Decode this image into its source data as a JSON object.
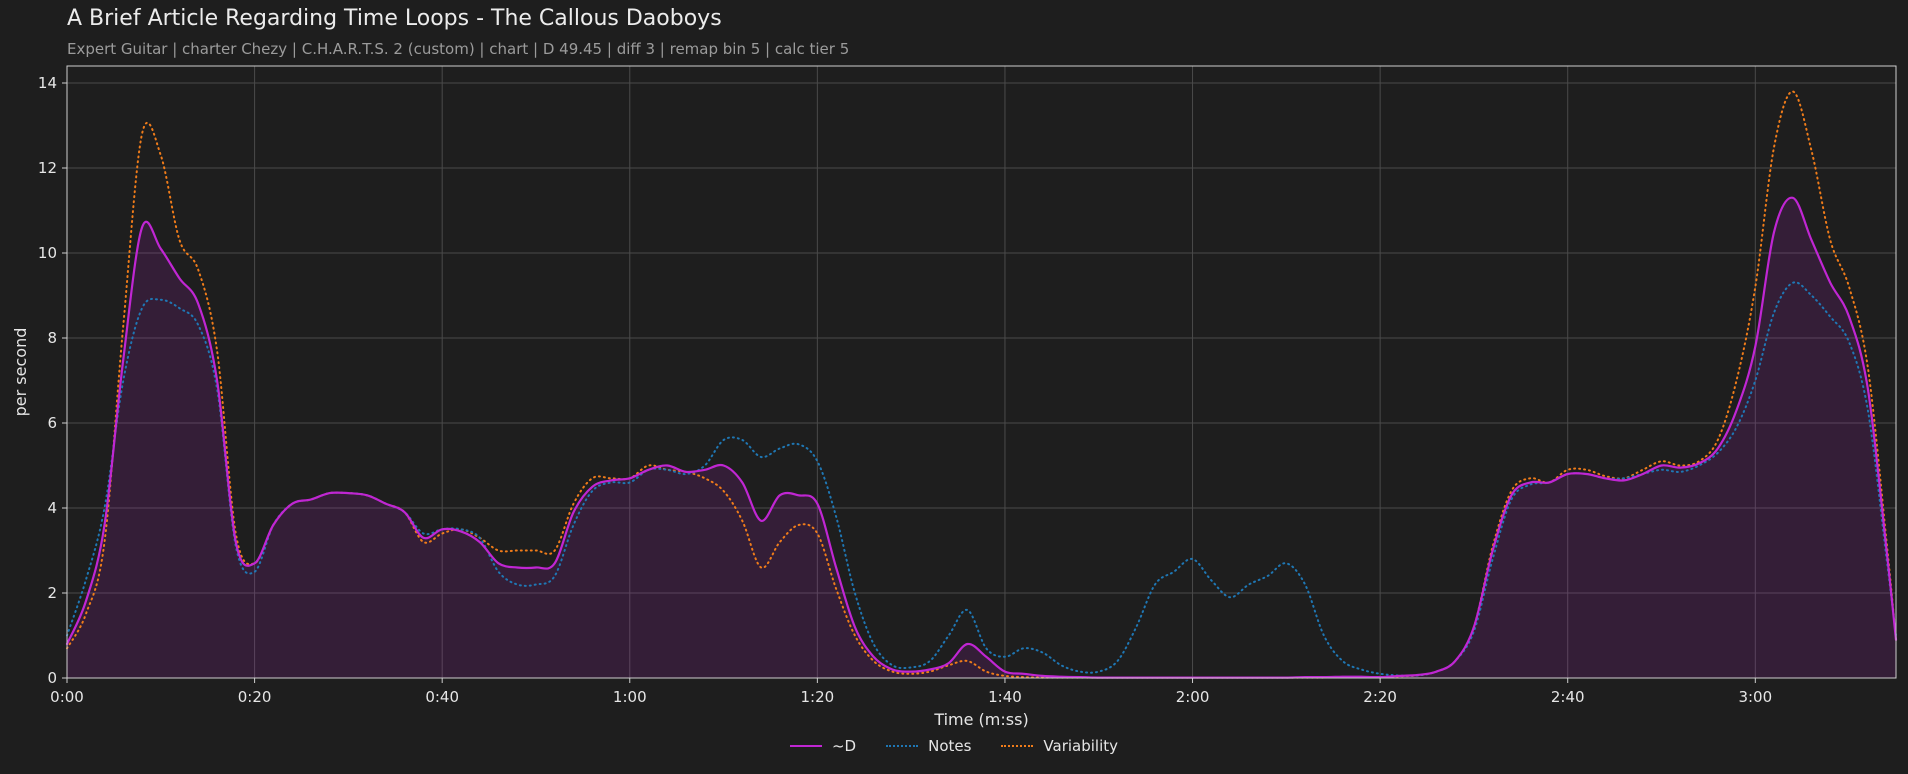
{
  "header": {
    "title": "A Brief Article Regarding Time Loops - The Callous Daoboys",
    "subtitle": "Expert Guitar  |  charter Chezy  |  C.H.A.R.T.S. 2 (custom)  |  chart  |  D 49.45  |  diff 3  |  remap bin 5  |  calc tier 5"
  },
  "chart_data": {
    "type": "area",
    "title": "A Brief Article Regarding Time Loops - The Callous Daoboys",
    "xlabel": "Time (m:ss)",
    "ylabel": "per second",
    "xlim": [
      0,
      195
    ],
    "ylim": [
      0,
      14.4
    ],
    "grid": true,
    "legend_position": "bottom-center",
    "xticks": [
      0,
      20,
      40,
      60,
      80,
      100,
      120,
      140,
      160,
      180
    ],
    "xtick_labels": [
      "0:00",
      "0:20",
      "0:40",
      "1:00",
      "1:20",
      "1:40",
      "2:00",
      "2:20",
      "2:40",
      "3:00"
    ],
    "yticks": [
      0,
      2,
      4,
      6,
      8,
      10,
      12,
      14
    ],
    "ytick_labels": [
      "0",
      "2",
      "4",
      "6",
      "8",
      "10",
      "12",
      "14"
    ],
    "x": [
      0,
      2,
      4,
      6,
      8,
      10,
      12,
      14,
      16,
      18,
      20,
      22,
      24,
      26,
      28,
      30,
      32,
      34,
      36,
      38,
      40,
      42,
      44,
      46,
      48,
      50,
      52,
      54,
      56,
      58,
      60,
      62,
      64,
      66,
      68,
      70,
      72,
      74,
      76,
      78,
      80,
      82,
      84,
      86,
      88,
      90,
      92,
      94,
      96,
      98,
      100,
      102,
      104,
      106,
      108,
      110,
      112,
      114,
      116,
      118,
      120,
      122,
      124,
      126,
      128,
      130,
      132,
      134,
      136,
      138,
      140,
      142,
      144,
      146,
      148,
      150,
      152,
      154,
      156,
      158,
      160,
      162,
      164,
      166,
      168,
      170,
      172,
      174,
      176,
      178,
      180,
      182,
      184,
      186,
      188,
      190,
      192,
      194,
      195
    ],
    "series": [
      {
        "name": "~D",
        "color": "#c026d3",
        "style": "solid",
        "values": [
          0.8,
          1.8,
          3.6,
          7.5,
          10.6,
          10.1,
          9.4,
          8.8,
          7.0,
          3.2,
          2.7,
          3.6,
          4.1,
          4.2,
          4.35,
          4.35,
          4.3,
          4.1,
          3.9,
          3.3,
          3.5,
          3.45,
          3.2,
          2.7,
          2.6,
          2.6,
          2.7,
          3.9,
          4.5,
          4.65,
          4.7,
          4.9,
          5.0,
          4.85,
          4.9,
          5.0,
          4.6,
          3.7,
          4.3,
          4.3,
          4.1,
          2.6,
          1.2,
          0.5,
          0.2,
          0.15,
          0.2,
          0.35,
          0.8,
          0.5,
          0.15,
          0.1,
          0.05,
          0.03,
          0.02,
          0.01,
          0.01,
          0.01,
          0.01,
          0.01,
          0.01,
          0.01,
          0.01,
          0.01,
          0.01,
          0.01,
          0.02,
          0.02,
          0.03,
          0.03,
          0.02,
          0.05,
          0.07,
          0.15,
          0.4,
          1.2,
          3.0,
          4.3,
          4.6,
          4.6,
          4.8,
          4.8,
          4.7,
          4.65,
          4.8,
          5.0,
          4.95,
          5.05,
          5.4,
          6.3,
          7.8,
          10.5,
          11.3,
          10.3,
          9.3,
          8.5,
          6.8,
          3.0,
          0.9
        ]
      },
      {
        "name": "Notes",
        "color": "#1f77b4",
        "style": "dotted",
        "values": [
          1.0,
          2.3,
          4.0,
          7.0,
          8.7,
          8.9,
          8.7,
          8.3,
          6.8,
          3.1,
          2.5,
          3.6,
          4.1,
          4.2,
          4.35,
          4.35,
          4.3,
          4.1,
          3.9,
          3.4,
          3.5,
          3.5,
          3.3,
          2.5,
          2.2,
          2.2,
          2.4,
          3.6,
          4.4,
          4.6,
          4.6,
          4.9,
          4.9,
          4.8,
          5.0,
          5.6,
          5.6,
          5.2,
          5.4,
          5.5,
          5.1,
          3.8,
          2.0,
          0.8,
          0.3,
          0.25,
          0.4,
          1.0,
          1.6,
          0.7,
          0.5,
          0.7,
          0.6,
          0.3,
          0.15,
          0.15,
          0.4,
          1.2,
          2.2,
          2.5,
          2.8,
          2.3,
          1.9,
          2.2,
          2.4,
          2.7,
          2.2,
          1.0,
          0.4,
          0.2,
          0.1,
          0.06,
          0.06,
          0.15,
          0.4,
          1.1,
          2.8,
          4.2,
          4.55,
          4.6,
          4.8,
          4.8,
          4.7,
          4.7,
          4.8,
          4.9,
          4.85,
          5.0,
          5.3,
          5.9,
          7.0,
          8.6,
          9.3,
          9.0,
          8.5,
          7.9,
          6.3,
          2.8,
          1.0
        ]
      },
      {
        "name": "Variability",
        "color": "#f07c1a",
        "style": "dotted",
        "values": [
          0.7,
          1.5,
          3.2,
          8.3,
          12.8,
          12.3,
          10.3,
          9.6,
          7.7,
          3.4,
          2.7,
          3.6,
          4.1,
          4.2,
          4.35,
          4.35,
          4.3,
          4.1,
          3.9,
          3.2,
          3.4,
          3.5,
          3.3,
          3.0,
          3.0,
          3.0,
          3.0,
          4.1,
          4.7,
          4.7,
          4.7,
          5.0,
          4.9,
          4.85,
          4.7,
          4.4,
          3.7,
          2.6,
          3.2,
          3.6,
          3.4,
          2.1,
          1.0,
          0.4,
          0.15,
          0.1,
          0.15,
          0.3,
          0.4,
          0.15,
          0.05,
          0.02,
          0.01,
          0.01,
          0.01,
          0.01,
          0.01,
          0.01,
          0.01,
          0.01,
          0.01,
          0.01,
          0.01,
          0.01,
          0.01,
          0.01,
          0.01,
          0.01,
          0.02,
          0.02,
          0.02,
          0.04,
          0.06,
          0.15,
          0.4,
          1.2,
          3.1,
          4.4,
          4.7,
          4.6,
          4.9,
          4.9,
          4.75,
          4.7,
          4.9,
          5.1,
          5.0,
          5.1,
          5.6,
          7.0,
          9.2,
          12.5,
          13.8,
          12.4,
          10.3,
          9.2,
          7.3,
          3.2,
          0.9
        ]
      }
    ]
  }
}
